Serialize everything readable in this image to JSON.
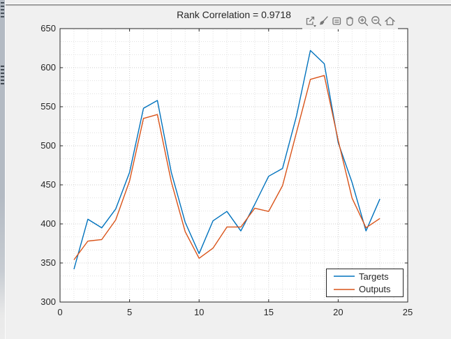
{
  "window": {
    "background": "#f0f0f0",
    "chrome": {
      "left_edge": "window-edge-strip",
      "top_divider": "horizontal-divider"
    }
  },
  "toolbar": {
    "icons": [
      {
        "name": "export-icon"
      },
      {
        "name": "brush-icon"
      },
      {
        "name": "datatips-icon"
      },
      {
        "name": "pan-icon"
      },
      {
        "name": "zoom-in-icon"
      },
      {
        "name": "zoom-out-icon"
      },
      {
        "name": "restore-view-icon"
      }
    ],
    "color": "#767676"
  },
  "chart_data": {
    "type": "line",
    "title": "Rank Correlation = 0.9718",
    "xlabel": "",
    "ylabel": "",
    "xlim": [
      0,
      25
    ],
    "ylim": [
      300,
      650
    ],
    "xticks": [
      0,
      5,
      10,
      15,
      20,
      25
    ],
    "yticks": [
      300,
      350,
      400,
      450,
      500,
      550,
      600,
      650
    ],
    "grid": true,
    "minor_grid": true,
    "grid_style": "dotted",
    "legend_position": "bottom-right",
    "x": [
      1,
      2,
      3,
      4,
      5,
      6,
      7,
      8,
      9,
      10,
      11,
      12,
      13,
      14,
      15,
      16,
      17,
      18,
      19,
      20,
      21,
      22,
      23
    ],
    "series": [
      {
        "name": "Targets",
        "color": "#0072BD",
        "values": [
          342,
          406,
          395,
          419,
          466,
          548,
          558,
          466,
          402,
          362,
          404,
          416,
          391,
          425,
          461,
          471,
          538,
          622,
          605,
          504,
          453,
          391,
          432
        ]
      },
      {
        "name": "Outputs",
        "color": "#D95319",
        "values": [
          354,
          378,
          380,
          405,
          455,
          535,
          540,
          454,
          390,
          356,
          369,
          396,
          396,
          420,
          416,
          449,
          517,
          585,
          590,
          507,
          433,
          395,
          407
        ]
      }
    ]
  }
}
